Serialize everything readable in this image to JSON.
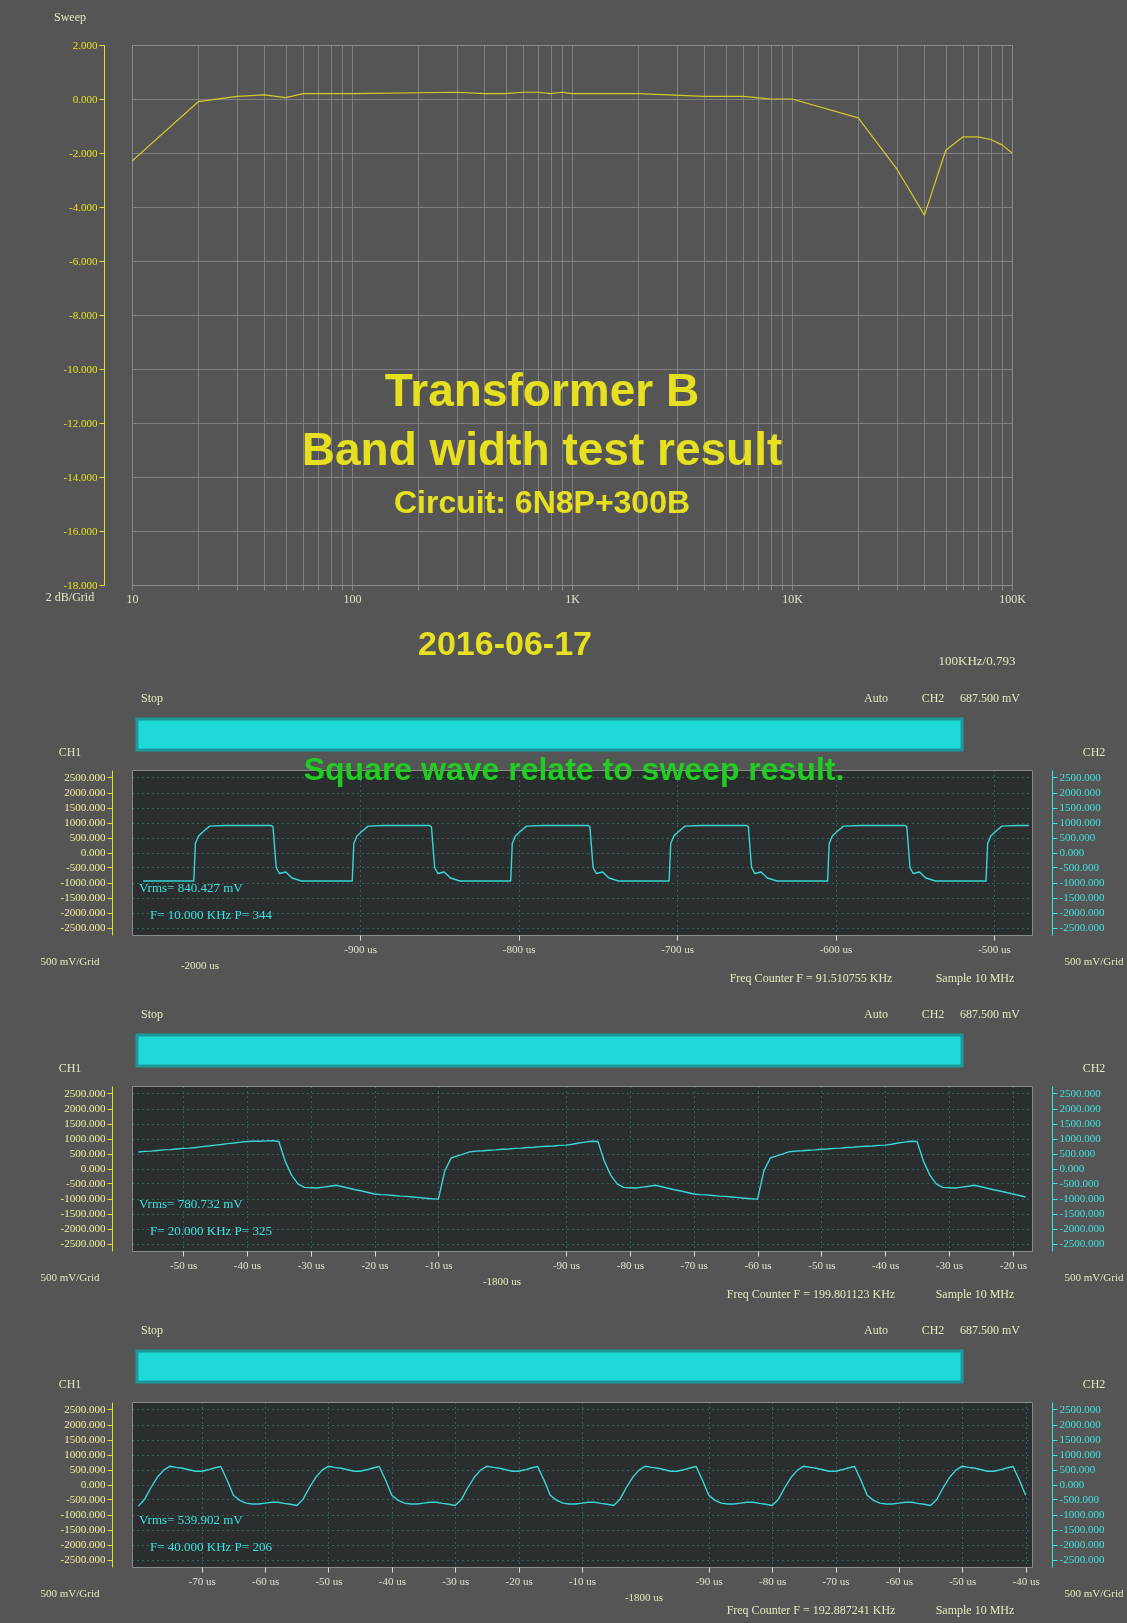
{
  "chart_data": [
    {
      "type": "line",
      "title": "Transformer B",
      "subtitle": "Band width test result",
      "log": "x",
      "grid": true,
      "x": [
        10,
        20,
        30,
        40,
        50,
        60,
        100,
        300,
        400,
        500,
        600,
        700,
        800,
        900,
        1000,
        2000,
        4000,
        6000,
        8000,
        10000,
        20000,
        30000,
        40000,
        50000,
        60000,
        70000,
        80000,
        90000,
        100000
      ],
      "series": [
        {
          "color": "#d2ca2a",
          "values": [
            -2.3,
            -0.1,
            0.1,
            0.15,
            0.05,
            0.2,
            0.2,
            0.25,
            0.2,
            0.2,
            0.25,
            0.25,
            0.2,
            0.25,
            0.2,
            0.2,
            0.1,
            0.1,
            0,
            0,
            -0.7,
            -2.6,
            -4.3,
            -1.9,
            -1.4,
            -1.4,
            -1.5,
            -1.7,
            -2.0
          ]
        }
      ],
      "xlim": [
        10,
        100000
      ],
      "xticks": [
        10,
        {
          "value": 20,
          "label": null
        },
        {
          "value": 30,
          "label": null
        },
        {
          "value": 40,
          "label": null
        },
        {
          "value": 50,
          "label": null
        },
        {
          "value": 60,
          "label": null
        },
        {
          "value": 70,
          "label": null
        },
        {
          "value": 80,
          "label": null
        },
        {
          "value": 90,
          "label": null
        },
        100,
        {
          "value": 200,
          "label": null
        },
        {
          "value": 300,
          "label": null
        },
        {
          "value": 400,
          "label": null
        },
        {
          "value": 500,
          "label": null
        },
        {
          "value": 600,
          "label": null
        },
        {
          "value": 700,
          "label": null
        },
        {
          "value": 800,
          "label": null
        },
        {
          "value": 900,
          "label": null
        },
        {
          "value": 1000,
          "label": "1K"
        },
        {
          "value": 2000,
          "label": null
        },
        {
          "value": 3000,
          "label": null
        },
        {
          "value": 4000,
          "label": null
        },
        {
          "value": 5000,
          "label": null
        },
        {
          "value": 6000,
          "label": null
        },
        {
          "value": 7000,
          "label": null
        },
        {
          "value": 8000,
          "label": null
        },
        {
          "value": 9000,
          "label": null
        },
        {
          "value": 10000,
          "label": "10K"
        },
        {
          "value": 20000,
          "label": null
        },
        {
          "value": 30000,
          "label": null
        },
        {
          "value": 40000,
          "label": null
        },
        {
          "value": 50000,
          "label": null
        },
        {
          "value": 60000,
          "label": null
        },
        {
          "value": 70000,
          "label": null
        },
        {
          "value": 80000,
          "label": null
        },
        {
          "value": 90000,
          "label": null
        },
        {
          "value": 100000,
          "label": "100K"
        }
      ],
      "ylim": [
        -18,
        2
      ],
      "yticks": [
        {
          "value": 2,
          "label": "2.000"
        },
        {
          "value": 0,
          "label": "0.000"
        },
        {
          "value": -2,
          "label": "-2.000"
        },
        {
          "value": -4,
          "label": "-4.000"
        },
        {
          "value": -6,
          "label": "-6.000"
        },
        {
          "value": -8,
          "label": "-8.000"
        },
        {
          "value": -10,
          "label": "-10.000"
        },
        {
          "value": -12,
          "label": "-12.000"
        },
        {
          "value": -14,
          "label": "-14.000"
        },
        {
          "value": -16,
          "label": "-16.000"
        },
        {
          "value": -18,
          "label": "-18.000"
        }
      ],
      "annotations": [
        "Circuit: 6N8P+300B",
        "2016-06-17",
        "Sweep",
        "2 dB/Grid",
        "100KHz/0.793"
      ]
    },
    {
      "type": "line",
      "grid": true,
      "ylabel": "CH1",
      "y2label": "CH2",
      "x": [
        -1037,
        -1005,
        -1004,
        -1002,
        -999,
        -995,
        -985,
        -956,
        -955,
        -953,
        -951,
        -947,
        -943,
        -937,
        -905,
        -904,
        -902,
        -899,
        -895,
        -885,
        -856,
        -855,
        -853,
        -851,
        -847,
        -843,
        -837,
        -805,
        -804,
        -802,
        -799,
        -795,
        -785,
        -756,
        -755,
        -753,
        -751,
        -747,
        -743,
        -737,
        -705,
        -704,
        -702,
        -699,
        -695,
        -685,
        -656,
        -655,
        -653,
        -651,
        -647,
        -643,
        -637,
        -605,
        -604,
        -602,
        -599,
        -595,
        -585,
        -556,
        -555,
        -553,
        -551,
        -547,
        -543,
        -537,
        -505,
        -504,
        -502,
        -499,
        -495,
        -485,
        -478
      ],
      "series": [
        {
          "color": "#3ad6d6",
          "values": [
            -950,
            -950,
            300,
            550,
            700,
            880,
            900,
            900,
            850,
            -500,
            -700,
            -650,
            -850,
            -950,
            -950,
            300,
            550,
            700,
            880,
            900,
            900,
            850,
            -500,
            -700,
            -650,
            -850,
            -950,
            -950,
            300,
            550,
            700,
            880,
            900,
            900,
            850,
            -500,
            -700,
            -650,
            -850,
            -950,
            -950,
            300,
            550,
            700,
            880,
            900,
            900,
            850,
            -500,
            -700,
            -650,
            -850,
            -950,
            -950,
            300,
            550,
            700,
            880,
            900,
            900,
            850,
            -500,
            -700,
            -650,
            -850,
            -950,
            -950,
            300,
            550,
            700,
            880,
            900,
            900
          ]
        }
      ],
      "xlim": [
        -1044,
        -476
      ],
      "xticks": [
        {
          "value": -900,
          "label": "-900 us"
        },
        {
          "value": -800,
          "label": "-800 us"
        },
        {
          "value": -700,
          "label": "-700 us"
        },
        {
          "value": -600,
          "label": "-600 us"
        },
        {
          "value": -500,
          "label": "-500 us"
        }
      ],
      "ylim": [
        -2750,
        2750
      ],
      "yticks": [
        {
          "value": 2500,
          "label": "2500.000"
        },
        {
          "value": 2000,
          "label": "2000.000"
        },
        {
          "value": 1500,
          "label": "1500.000"
        },
        {
          "value": 1000,
          "label": "1000.000"
        },
        {
          "value": 500,
          "label": "500.000"
        },
        {
          "value": 0,
          "label": "0.000"
        },
        {
          "value": -500,
          "label": "-500.000"
        },
        {
          "value": -1000,
          "label": "-1000.000"
        },
        {
          "value": -1500,
          "label": "-1500.000"
        },
        {
          "value": -2000,
          "label": "-2000.000"
        },
        {
          "value": -2500,
          "label": "-2500.000"
        }
      ],
      "y2lim": [
        -2750,
        2750
      ],
      "y2ticks": [
        {
          "value": 2500,
          "label": "2500.000"
        },
        {
          "value": 2000,
          "label": "2000.000"
        },
        {
          "value": 1500,
          "label": "1500.000"
        },
        {
          "value": 1000,
          "label": "1000.000"
        },
        {
          "value": 500,
          "label": "500.000"
        },
        {
          "value": 0,
          "label": "0.000"
        },
        {
          "value": -500,
          "label": "-500.000"
        },
        {
          "value": -1000,
          "label": "-1000.000"
        },
        {
          "value": -1500,
          "label": "-1500.000"
        },
        {
          "value": -2000,
          "label": "-2000.000"
        },
        {
          "value": -2500,
          "label": "-2500.000"
        }
      ],
      "annotations": [
        "Stop",
        "Auto",
        "CH2",
        "687.500 mV",
        "Vrms= 840.427 mV",
        "F= 10.000 KHz  P= 344",
        "-2000 us",
        "500 mV/Grid",
        "500 mV/Grid",
        "Freq Counter F = 91.510755 KHz",
        "Sample 10 MHz",
        "Square wave relate to sweep result."
      ]
    },
    {
      "type": "line",
      "grid": true,
      "ylabel": "CH1",
      "y2label": "CH2",
      "categories": [
        null,
        null,
        null,
        null,
        null,
        null,
        null,
        "-50 us",
        null,
        null,
        null,
        null,
        null,
        null,
        null,
        null,
        null,
        "-40 us",
        null,
        null,
        null,
        null,
        null,
        null,
        null,
        null,
        null,
        "-30 us",
        null,
        null,
        null,
        null,
        null,
        null,
        null,
        null,
        null,
        "-20 us",
        null,
        null,
        null,
        null,
        null,
        null,
        null,
        null,
        null,
        "-10 us",
        null,
        null,
        null,
        null,
        null,
        null,
        null,
        null,
        null,
        null,
        null,
        null,
        null,
        null,
        null,
        null,
        null,
        null,
        null,
        "-90 us",
        null,
        null,
        null,
        null,
        null,
        null,
        null,
        null,
        null,
        "-80 us",
        null,
        null,
        null,
        null,
        null,
        null,
        null,
        null,
        null,
        "-70 us",
        null,
        null,
        null,
        null,
        null,
        null,
        null,
        null,
        null,
        "-60 us",
        null,
        null,
        null,
        null,
        null,
        null,
        null,
        null,
        null,
        "-50 us",
        null,
        null,
        null,
        null,
        null,
        null,
        null,
        null,
        null,
        "-40 us",
        null,
        null,
        null,
        null,
        null,
        null,
        null,
        null,
        null,
        "-30 us",
        null,
        null,
        null,
        null,
        null,
        null,
        null,
        null,
        null,
        "-20 us",
        null,
        null
      ],
      "series": [
        {
          "color": "#3ad6d6",
          "values": [
            550,
            570,
            580,
            600,
            620,
            630,
            650,
            670,
            680,
            700,
            730,
            750,
            780,
            800,
            830,
            850,
            880,
            900,
            910,
            910,
            920,
            930,
            900,
            240,
            -220,
            -510,
            -630,
            -640,
            -650,
            -620,
            -590,
            -560,
            -610,
            -660,
            -710,
            -750,
            -800,
            -850,
            -870,
            -880,
            -900,
            -920,
            -930,
            -950,
            -970,
            -990,
            -1010,
            -1020,
            -80,
            350,
            420,
            490,
            560,
            580,
            590,
            610,
            620,
            640,
            650,
            670,
            680,
            700,
            710,
            730,
            740,
            750,
            770,
            780,
            810,
            850,
            880,
            910,
            900,
            240,
            -220,
            -510,
            -630,
            -640,
            -650,
            -620,
            -590,
            -560,
            -610,
            -660,
            -710,
            -750,
            -800,
            -850,
            -870,
            -880,
            -900,
            -920,
            -930,
            -950,
            -970,
            -990,
            -1010,
            -1020,
            -80,
            350,
            420,
            490,
            560,
            580,
            590,
            610,
            620,
            640,
            650,
            670,
            680,
            700,
            710,
            730,
            740,
            750,
            770,
            780,
            810,
            850,
            880,
            910,
            900,
            240,
            -220,
            -510,
            -630,
            -640,
            -650,
            -620,
            -590,
            -560,
            -610,
            -660,
            -710,
            -750,
            -800,
            -850,
            -900,
            -950
          ]
        }
      ],
      "ylim": [
        -2750,
        2750
      ],
      "yticks": [
        {
          "value": 2500,
          "label": "2500.000"
        },
        {
          "value": 2000,
          "label": "2000.000"
        },
        {
          "value": 1500,
          "label": "1500.000"
        },
        {
          "value": 1000,
          "label": "1000.000"
        },
        {
          "value": 500,
          "label": "500.000"
        },
        {
          "value": 0,
          "label": "0.000"
        },
        {
          "value": -500,
          "label": "-500.000"
        },
        {
          "value": -1000,
          "label": "-1000.000"
        },
        {
          "value": -1500,
          "label": "-1500.000"
        },
        {
          "value": -2000,
          "label": "-2000.000"
        },
        {
          "value": -2500,
          "label": "-2500.000"
        }
      ],
      "y2lim": [
        -2750,
        2750
      ],
      "y2ticks": [
        {
          "value": 2500,
          "label": "2500.000"
        },
        {
          "value": 2000,
          "label": "2000.000"
        },
        {
          "value": 1500,
          "label": "1500.000"
        },
        {
          "value": 1000,
          "label": "1000.000"
        },
        {
          "value": 500,
          "label": "500.000"
        },
        {
          "value": 0,
          "label": "0.000"
        },
        {
          "value": -500,
          "label": "-500.000"
        },
        {
          "value": -1000,
          "label": "-1000.000"
        },
        {
          "value": -1500,
          "label": "-1500.000"
        },
        {
          "value": -2000,
          "label": "-2000.000"
        },
        {
          "value": -2500,
          "label": "-2500.000"
        }
      ],
      "annotations": [
        "Stop",
        "Auto",
        "CH2",
        "687.500 mV",
        "Vrms= 780.732 mV",
        "F= 20.000 KHz  P= 325",
        "-1800 us",
        "500 mV/Grid",
        "500 mV/Grid",
        "Freq Counter F = 199.801123 KHz",
        "Sample 10 MHz"
      ]
    },
    {
      "type": "line",
      "grid": true,
      "ylabel": "CH1",
      "y2label": "CH2",
      "categories": [
        null,
        null,
        null,
        null,
        null,
        null,
        null,
        null,
        null,
        null,
        "-70 us",
        null,
        null,
        null,
        null,
        null,
        null,
        null,
        null,
        null,
        "-60 us",
        null,
        null,
        null,
        null,
        null,
        null,
        null,
        null,
        null,
        "-50 us",
        null,
        null,
        null,
        null,
        null,
        null,
        null,
        null,
        null,
        "-40 us",
        null,
        null,
        null,
        null,
        null,
        null,
        null,
        null,
        null,
        "-30 us",
        null,
        null,
        null,
        null,
        null,
        null,
        null,
        null,
        null,
        "-20 us",
        null,
        null,
        null,
        null,
        null,
        null,
        null,
        null,
        null,
        "-10 us",
        null,
        null,
        null,
        null,
        null,
        null,
        null,
        null,
        null,
        null,
        null,
        null,
        null,
        null,
        null,
        null,
        null,
        null,
        null,
        "-90 us",
        null,
        null,
        null,
        null,
        null,
        null,
        null,
        null,
        null,
        "-80 us",
        null,
        null,
        null,
        null,
        null,
        null,
        null,
        null,
        null,
        "-70 us",
        null,
        null,
        null,
        null,
        null,
        null,
        null,
        null,
        null,
        "-60 us",
        null,
        null,
        null,
        null,
        null,
        null,
        null,
        null,
        null,
        "-50 us",
        null,
        null,
        null,
        null,
        null,
        null,
        null,
        null,
        null,
        "-40 us"
      ],
      "series": [
        {
          "color": "#3ad6d6",
          "values": [
            -720,
            -490,
            -100,
            240,
            480,
            610,
            570,
            540,
            490,
            440,
            440,
            490,
            550,
            600,
            150,
            -360,
            -530,
            -620,
            -650,
            -650,
            -620,
            -590,
            -590,
            -630,
            -660,
            -700,
            -490,
            -100,
            240,
            480,
            610,
            570,
            540,
            490,
            440,
            440,
            490,
            550,
            600,
            150,
            -360,
            -530,
            -620,
            -650,
            -650,
            -620,
            -590,
            -590,
            -630,
            -660,
            -700,
            -490,
            -100,
            240,
            480,
            610,
            570,
            540,
            490,
            440,
            440,
            490,
            550,
            600,
            150,
            -360,
            -530,
            -620,
            -650,
            -650,
            -620,
            -590,
            -590,
            -630,
            -660,
            -700,
            -490,
            -100,
            240,
            480,
            610,
            570,
            540,
            490,
            440,
            440,
            490,
            550,
            600,
            150,
            -360,
            -530,
            -620,
            -650,
            -650,
            -620,
            -590,
            -590,
            -630,
            -660,
            -700,
            -490,
            -100,
            240,
            480,
            610,
            570,
            540,
            490,
            440,
            440,
            490,
            550,
            600,
            150,
            -360,
            -530,
            -620,
            -650,
            -650,
            -620,
            -590,
            -590,
            -630,
            -660,
            -700,
            -490,
            -100,
            240,
            480,
            610,
            570,
            540,
            490,
            440,
            440,
            490,
            550,
            600,
            150,
            -360
          ]
        }
      ],
      "ylim": [
        -2750,
        2750
      ],
      "yticks": [
        {
          "value": 2500,
          "label": "2500.000"
        },
        {
          "value": 2000,
          "label": "2000.000"
        },
        {
          "value": 1500,
          "label": "1500.000"
        },
        {
          "value": 1000,
          "label": "1000.000"
        },
        {
          "value": 500,
          "label": "500.000"
        },
        {
          "value": 0,
          "label": "0.000"
        },
        {
          "value": -500,
          "label": "-500.000"
        },
        {
          "value": -1000,
          "label": "-1000.000"
        },
        {
          "value": -1500,
          "label": "-1500.000"
        },
        {
          "value": -2000,
          "label": "-2000.000"
        },
        {
          "value": -2500,
          "label": "-2500.000"
        }
      ],
      "y2lim": [
        -2750,
        2750
      ],
      "y2ticks": [
        {
          "value": 2500,
          "label": "2500.000"
        },
        {
          "value": 2000,
          "label": "2000.000"
        },
        {
          "value": 1500,
          "label": "1500.000"
        },
        {
          "value": 1000,
          "label": "1000.000"
        },
        {
          "value": 500,
          "label": "500.000"
        },
        {
          "value": 0,
          "label": "0.000"
        },
        {
          "value": -500,
          "label": "-500.000"
        },
        {
          "value": -1000,
          "label": "-1000.000"
        },
        {
          "value": -1500,
          "label": "-1500.000"
        },
        {
          "value": -2000,
          "label": "-2000.000"
        },
        {
          "value": -2500,
          "label": "-2500.000"
        }
      ],
      "annotations": [
        "Stop",
        "Auto",
        "CH2",
        "687.500 mV",
        "Vrms= 539.902 mV",
        "F= 40.000 KHz  P= 206",
        "-1800 us",
        "500 mV/Grid",
        "500 mV/Grid",
        "Freq Counter F = 192.887241 KHz",
        "Sample 10 MHz"
      ]
    }
  ]
}
